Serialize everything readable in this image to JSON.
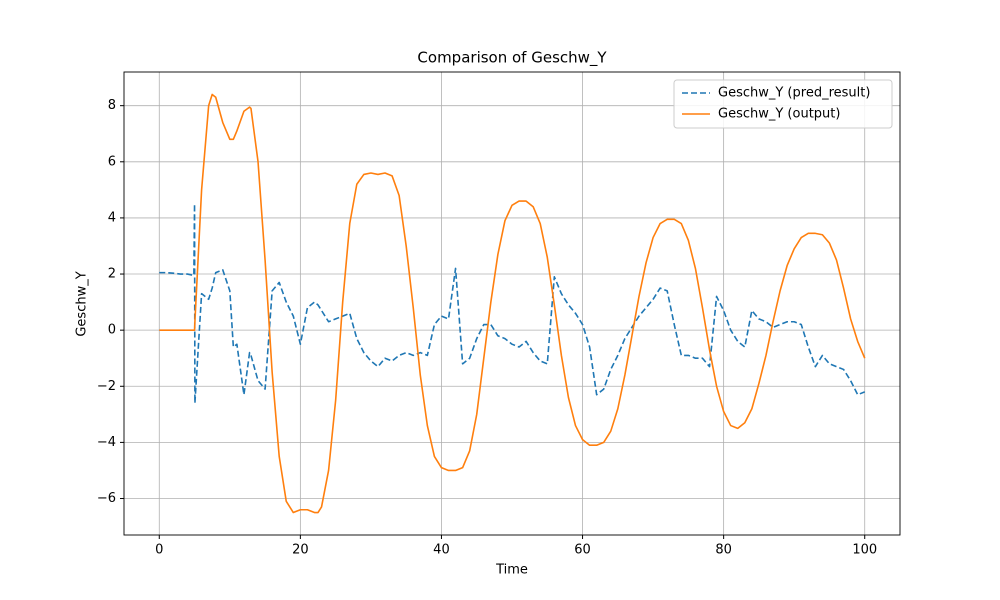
{
  "chart_data": {
    "type": "line",
    "title": "Comparison of Geschw_Y",
    "x_label": "Time",
    "y_label": "Geschw_Y",
    "x": [
      0,
      1,
      2,
      3,
      4,
      4.9,
      5,
      5.05,
      6,
      7,
      7.5,
      8,
      9,
      10,
      10.5,
      11,
      12,
      12.8,
      13,
      14,
      15,
      16,
      17,
      18,
      19,
      20,
      21,
      22,
      22.5,
      23,
      24,
      25,
      26,
      27,
      28,
      29,
      30,
      31,
      32,
      33,
      34,
      35,
      36,
      37,
      38,
      39,
      40,
      41,
      42,
      43,
      44,
      45,
      46,
      47,
      48,
      49,
      50,
      51,
      52,
      53,
      54,
      55,
      56,
      57,
      58,
      59,
      60,
      61,
      62,
      63,
      64,
      65,
      66,
      67,
      68,
      69,
      70,
      71,
      72,
      73,
      74,
      75,
      76,
      77,
      78,
      79,
      80,
      81,
      82,
      83,
      84,
      85,
      86,
      87,
      88,
      89,
      90,
      91,
      92,
      93,
      94,
      95,
      96,
      97,
      98,
      99,
      100
    ],
    "series": [
      {
        "name": "Geschw_Y (pred_result)",
        "color": "#1f77b4",
        "linestyle": "dashed",
        "values": [
          2.05,
          2.05,
          2.03,
          2.0,
          2.0,
          1.95,
          4.5,
          -2.6,
          1.3,
          1.1,
          1.5,
          2.05,
          2.15,
          1.4,
          -0.6,
          -0.5,
          -2.3,
          -0.8,
          -0.9,
          -1.8,
          -2.1,
          1.4,
          1.7,
          1.0,
          0.5,
          -0.5,
          0.8,
          1.0,
          0.9,
          0.7,
          0.3,
          0.4,
          0.5,
          0.6,
          -0.3,
          -0.8,
          -1.1,
          -1.3,
          -1,
          -1.1,
          -0.9,
          -0.8,
          -0.9,
          -0.8,
          -0.9,
          0.2,
          0.5,
          0.4,
          2.2,
          -1.2,
          -1,
          -0.3,
          0.2,
          0.2,
          -0.2,
          -0.3,
          -0.5,
          -0.6,
          -0.4,
          -0.8,
          -1.1,
          -1.2,
          1.9,
          1.3,
          0.9,
          0.6,
          0.2,
          -0.6,
          -2.3,
          -2.1,
          -1.4,
          -0.9,
          -0.3,
          0.1,
          0.5,
          0.8,
          1.1,
          1.5,
          1.4,
          0.2,
          -0.9,
          -0.9,
          -1,
          -1.0,
          -1.3,
          1.2,
          0.7,
          0,
          -0.4,
          -0.6,
          0.7,
          0.4,
          0.3,
          0.1,
          0.2,
          0.3,
          0.3,
          0.2,
          -0.6,
          -1.3,
          -0.9,
          -1.2,
          -1.3,
          -1.4,
          -1.8,
          -2.3,
          -2.2
        ]
      },
      {
        "name": "Geschw_Y (output)",
        "color": "#ff7f0e",
        "linestyle": "solid",
        "values": [
          0,
          0,
          0,
          0,
          0,
          0,
          0,
          0.3,
          5,
          8,
          8.4,
          8.3,
          7.4,
          6.8,
          6.8,
          7.1,
          7.8,
          7.95,
          7.9,
          6,
          2.5,
          -1.5,
          -4.5,
          -6.1,
          -6.5,
          -6.4,
          -6.4,
          -6.5,
          -6.5,
          -6.3,
          -5,
          -2.5,
          1,
          3.8,
          5.2,
          5.55,
          5.6,
          5.55,
          5.6,
          5.5,
          4.8,
          3,
          0.8,
          -1.6,
          -3.4,
          -4.5,
          -4.9,
          -5,
          -5,
          -4.9,
          -4.3,
          -3,
          -1,
          1,
          2.7,
          3.9,
          4.45,
          4.6,
          4.6,
          4.4,
          3.8,
          2.6,
          0.9,
          -0.9,
          -2.4,
          -3.4,
          -3.9,
          -4.1,
          -4.1,
          -4,
          -3.6,
          -2.8,
          -1.6,
          -0.2,
          1.2,
          2.4,
          3.3,
          3.8,
          3.95,
          3.95,
          3.8,
          3.2,
          2.2,
          0.8,
          -0.7,
          -2,
          -2.9,
          -3.4,
          -3.5,
          -3.3,
          -2.8,
          -1.9,
          -0.9,
          0.3,
          1.4,
          2.3,
          2.9,
          3.3,
          3.45,
          3.45,
          3.4,
          3.1,
          2.5,
          1.5,
          0.4,
          -0.4,
          -1
        ]
      }
    ],
    "xlim": [
      -5,
      105
    ],
    "ylim": [
      -7.3,
      9.2
    ],
    "xticks": [
      0,
      20,
      40,
      60,
      80,
      100
    ],
    "yticks": [
      {
        "value": -6,
        "label": "−6"
      },
      {
        "value": -4,
        "label": "−4"
      },
      {
        "value": -2,
        "label": "−2"
      },
      0,
      2,
      4,
      6,
      8
    ],
    "grid": true,
    "legend": "upper right"
  }
}
